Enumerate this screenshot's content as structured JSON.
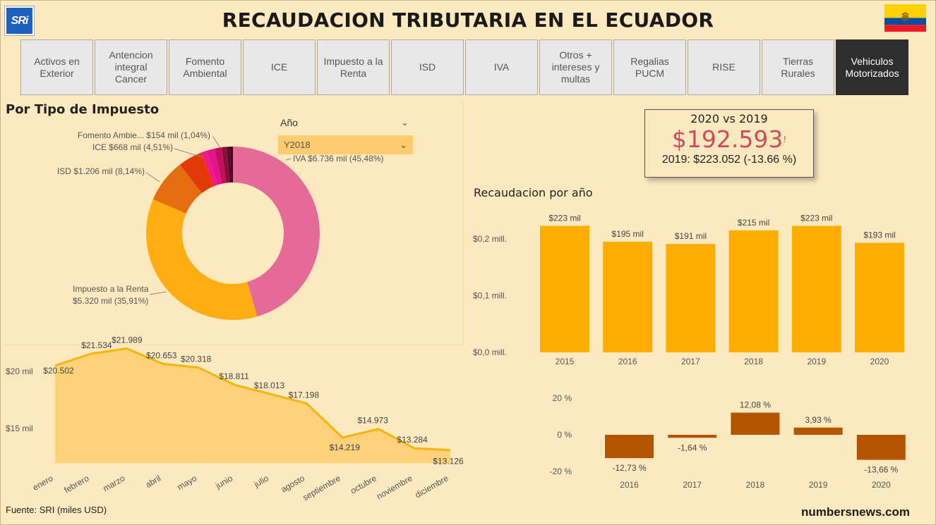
{
  "header": {
    "logo_text": "SRi",
    "title": "RECAUDACION TRIBUTARIA EN EL ECUADOR",
    "flag_colors": [
      "#ffd100",
      "#034ea2",
      "#ed1c24"
    ]
  },
  "tabs": [
    {
      "label": "Activos en Exterior",
      "active": false
    },
    {
      "label": "Antencion integral Cancer",
      "active": false
    },
    {
      "label": "Fomento Ambiental",
      "active": false
    },
    {
      "label": "ICE",
      "active": false
    },
    {
      "label": "Impuesto a la Renta",
      "active": false
    },
    {
      "label": "ISD",
      "active": false
    },
    {
      "label": "IVA",
      "active": false
    },
    {
      "label": "Otros + intereses y multas",
      "active": false
    },
    {
      "label": "Regalias PUCM",
      "active": false
    },
    {
      "label": "RISE",
      "active": false
    },
    {
      "label": "Tierras Rurales",
      "active": false
    },
    {
      "label": "Vehiculos Motorizados",
      "active": true
    }
  ],
  "left_panel": {
    "title": "Por Tipo de Impuesto",
    "slicer": {
      "label": "Año",
      "selected": "Y2018"
    }
  },
  "kpi": {
    "title": "2020 vs 2019",
    "value": "$192.593",
    "indicator": "!",
    "subtitle": "2019: $223.052 (-13.66 %)"
  },
  "right_panel": {
    "title": "Recaudacion por año"
  },
  "footer": {
    "source": "Fuente: SRI  (miles USD)",
    "brand": "numbersnews.com"
  },
  "chart_data": [
    {
      "type": "pie",
      "variant": "donut",
      "slices": [
        {
          "label": "IVA",
          "text": "IVA $6.736 mil (45,48%)",
          "value": 45.48,
          "color": "#e66a97"
        },
        {
          "label": "Impuesto a la Renta",
          "text_lines": [
            "Impuesto a la Renta",
            "$5.320 mil (35,91%)"
          ],
          "value": 35.91,
          "color": "#ffad12"
        },
        {
          "label": "ISD",
          "text": "ISD $1.206 mil (8,14%)",
          "value": 8.14,
          "color": "#e56c0f"
        },
        {
          "label": "ICE",
          "text": "ICE $668 mil (4,51%)",
          "value": 4.51,
          "color": "#e33808"
        },
        {
          "label": "Fomento Ambie...",
          "text": "Fomento Ambie... $154 mil (1,04%)",
          "value": 1.04,
          "color": "#f5178a"
        },
        {
          "label": "",
          "value": 1.5,
          "color": "#e0148c"
        },
        {
          "label": "",
          "value": 1.3,
          "color": "#c30f5e"
        },
        {
          "label": "",
          "value": 1.0,
          "color": "#8a0e3c"
        },
        {
          "label": "",
          "value": 0.6,
          "color": "#5a0a28"
        },
        {
          "label": "",
          "value": 0.52,
          "color": "#3a0a18"
        }
      ]
    },
    {
      "type": "area",
      "categories": [
        "enero",
        "febrero",
        "marzo",
        "abril",
        "mayo",
        "junio",
        "julio",
        "agosto",
        "septiembre",
        "octubre",
        "noviembre",
        "diciembre"
      ],
      "values": [
        20502,
        21534,
        21989,
        20653,
        20318,
        18811,
        18013,
        17198,
        14219,
        14973,
        13284,
        13126
      ],
      "labels": [
        "$20.502",
        "$21.534",
        "$21.989",
        "$20.653",
        "$20.318",
        "$18.811",
        "$18.013",
        "$17.198",
        "$14.219",
        "$14.973",
        "$13.284",
        "$13.126"
      ],
      "yticks": [
        {
          "value": 15000,
          "label": "$15 mil"
        },
        {
          "value": 20000,
          "label": "$20 mil"
        }
      ],
      "ylim": [
        12000,
        23500
      ],
      "color": "#f5b50a",
      "fill": "#fdd07a"
    },
    {
      "type": "bar",
      "categories": [
        "2015",
        "2016",
        "2017",
        "2018",
        "2019",
        "2020"
      ],
      "values": [
        223,
        195,
        191,
        215,
        223,
        193
      ],
      "labels": [
        "$223 mil",
        "$195 mil",
        "$191 mil",
        "$215 mil",
        "$223 mil",
        "$193 mil"
      ],
      "yticks": [
        {
          "value": 0,
          "label": "$0,0 mill."
        },
        {
          "value": 100,
          "label": "$0,1 mill."
        },
        {
          "value": 200,
          "label": "$0,2 mill."
        }
      ],
      "ylim": [
        0,
        236
      ],
      "color": "#ffad00"
    },
    {
      "type": "bar",
      "categories": [
        "2016",
        "2017",
        "2018",
        "2019",
        "2020"
      ],
      "values": [
        -12.73,
        -1.64,
        12.08,
        3.93,
        -13.66
      ],
      "labels": [
        "-12,73 %",
        "-1,64 %",
        "12,08 %",
        "3,93 %",
        "-13,66 %"
      ],
      "yticks": [
        {
          "value": 20,
          "label": "20 %"
        },
        {
          "value": 0,
          "label": "0 %"
        },
        {
          "value": -20,
          "label": "-20 %"
        }
      ],
      "ylim": [
        -20,
        20
      ],
      "color": "#b35400"
    }
  ]
}
